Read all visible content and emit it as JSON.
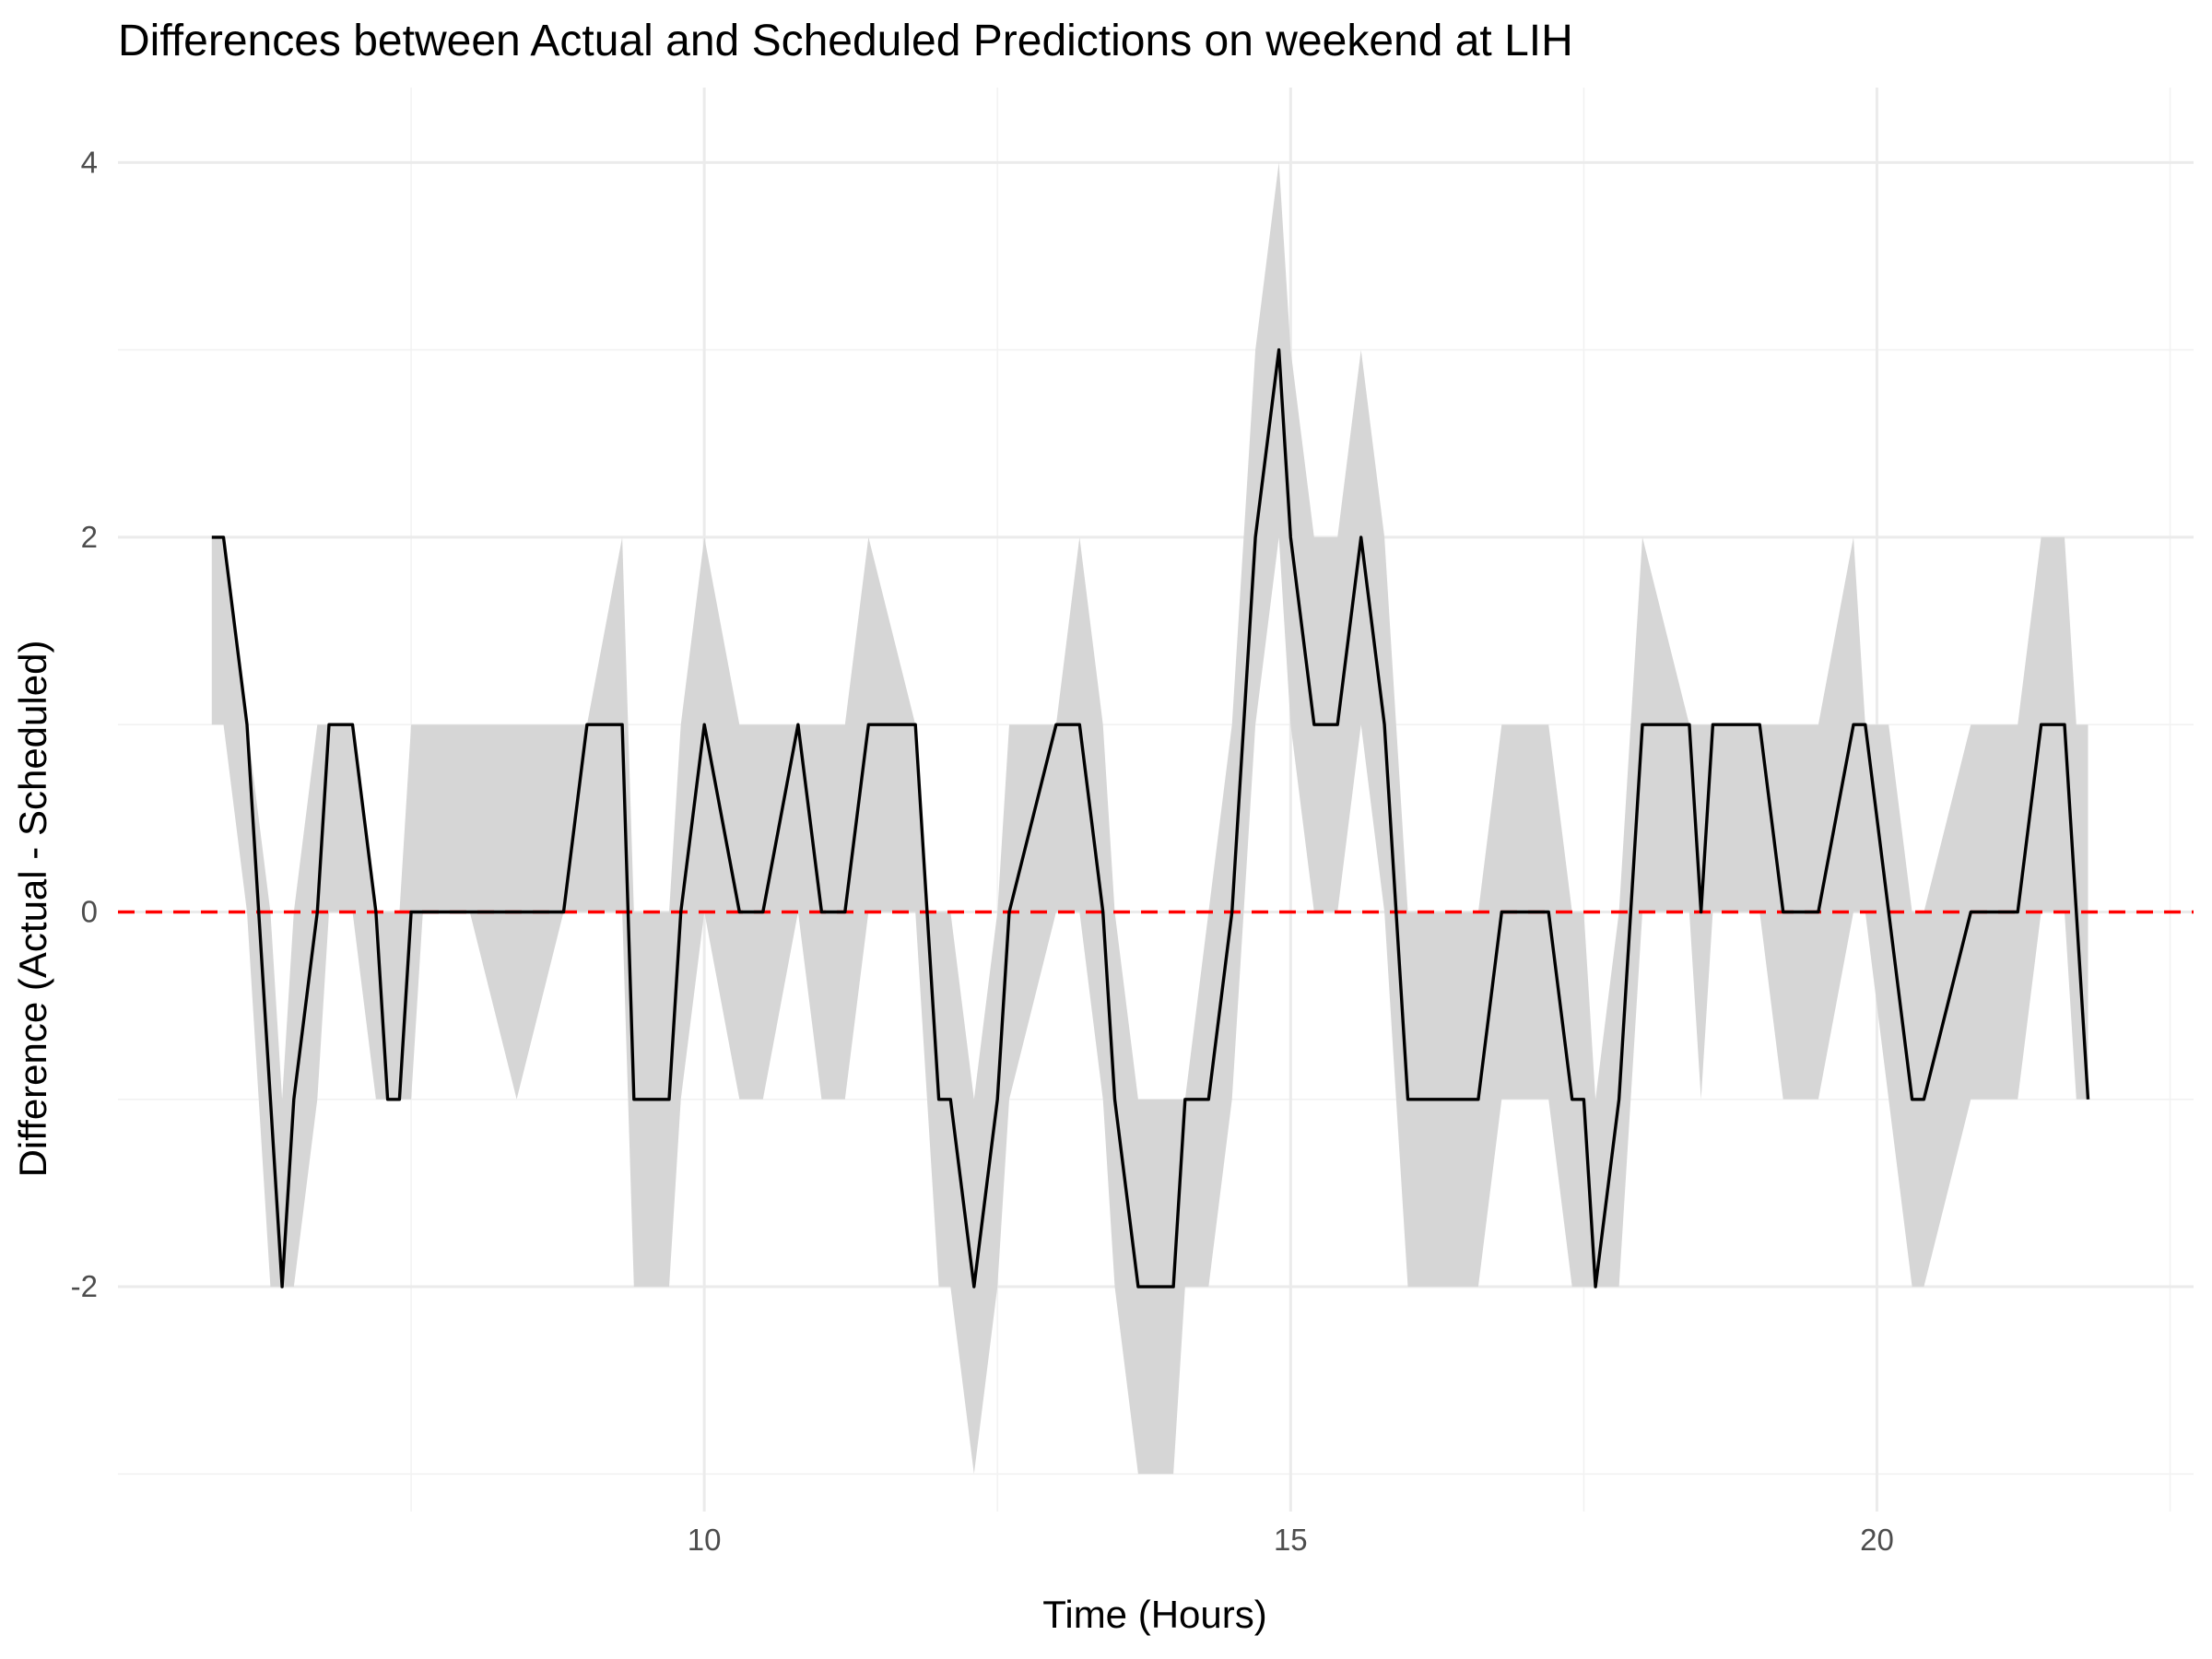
{
  "chart_data": {
    "type": "line",
    "title": "Differences between Actual and Scheduled Predictions on weekend at LIH",
    "xlabel": "Time (Hours)",
    "ylabel": "Difference (Actual - Scheduled)",
    "xlim": [
      5.0,
      22.7
    ],
    "ylim": [
      -3.2,
      4.4
    ],
    "x_ticks": [
      10,
      15,
      20
    ],
    "x_tick_labels": [
      "10",
      "15",
      "20"
    ],
    "x_minor_ticks": [
      7.5,
      12.5,
      17.5,
      22.5
    ],
    "y_ticks": [
      -2,
      0,
      2,
      4
    ],
    "y_tick_labels": [
      "-2",
      "0",
      "2",
      "4"
    ],
    "y_minor_ticks": [
      -3,
      -1,
      1,
      3
    ],
    "grid": true,
    "legend": "none",
    "colors": {
      "line": "#000000",
      "ribbon": "#d6d6d6",
      "reference": "#ff0000",
      "grid": "#ebebeb"
    },
    "reference_line": {
      "y": 0,
      "style": "dashed"
    },
    "series": [
      {
        "x": [
          5.8,
          5.9,
          6.1,
          6.3,
          6.4,
          6.5,
          6.7,
          6.8,
          7.0,
          7.2,
          7.3,
          7.4,
          7.5,
          7.6,
          8.0,
          8.4,
          8.8,
          9.0,
          9.3,
          9.4,
          9.7,
          9.8,
          10.0,
          10.3,
          10.5,
          10.8,
          11.0,
          11.2,
          11.4,
          11.8,
          11.9,
          12.0,
          12.1,
          12.3,
          12.5,
          12.6,
          13.0,
          13.2,
          13.4,
          13.5,
          13.7,
          14.0,
          14.1,
          14.3,
          14.5,
          14.7,
          14.9,
          15.0,
          15.2,
          15.4,
          15.6,
          15.8,
          15.9,
          16.0,
          16.2,
          16.6,
          16.8,
          17.1,
          17.2,
          17.4,
          17.5,
          17.6,
          17.8,
          18.0,
          18.4,
          18.5,
          18.6,
          19.0,
          19.2,
          19.5,
          19.8,
          19.9,
          20.1,
          20.3,
          20.4,
          20.8,
          20.9,
          21.2,
          21.4,
          21.6,
          21.7,
          21.8
        ],
        "values": [
          2,
          2,
          1,
          -1,
          -2,
          -1,
          0,
          1,
          1,
          0,
          -1,
          -1,
          0,
          0,
          0,
          0,
          0,
          1,
          1,
          -1,
          -1,
          0,
          1,
          0,
          0,
          1,
          0,
          0,
          1,
          1,
          0,
          -1,
          -1,
          -2,
          -1,
          0,
          1,
          1,
          0,
          -1,
          -2,
          -2,
          -1,
          -1,
          0,
          2,
          3,
          2,
          1,
          1,
          2,
          1,
          0,
          -1,
          -1,
          -1,
          0,
          0,
          0,
          -1,
          -1,
          -2,
          -1,
          1,
          1,
          0,
          1,
          1,
          0,
          0,
          1,
          1,
          0,
          -1,
          -1,
          0,
          0,
          0,
          1,
          1,
          0,
          -1
        ],
        "lower": [
          1,
          1,
          0,
          -2,
          -2,
          -2,
          -1,
          0,
          0,
          -1,
          -1,
          -1,
          -1,
          0,
          0,
          -1,
          0,
          0,
          0,
          -2,
          -2,
          -1,
          0,
          -1,
          -1,
          0,
          -1,
          -1,
          0,
          0,
          -1,
          -2,
          -2,
          -3,
          -2,
          -1,
          0,
          0,
          -1,
          -2,
          -3,
          -3,
          -2,
          -2,
          -1,
          1,
          2,
          1,
          0,
          0,
          1,
          0,
          -1,
          -2,
          -2,
          -2,
          -1,
          -1,
          -1,
          -2,
          -2,
          -2,
          -2,
          0,
          0,
          -1,
          0,
          0,
          -1,
          -1,
          0,
          0,
          -1,
          -2,
          -2,
          -1,
          -1,
          -1,
          0,
          0,
          -1,
          -1
        ],
        "upper": [
          2,
          2,
          1,
          0,
          -1,
          0,
          1,
          1,
          1,
          0,
          0,
          0,
          1,
          1,
          1,
          1,
          1,
          1,
          2,
          0,
          0,
          1,
          2,
          1,
          1,
          1,
          1,
          1,
          2,
          1,
          0,
          0,
          0,
          -1,
          0,
          1,
          1,
          2,
          1,
          0,
          -1,
          -1,
          -1,
          0,
          1,
          3,
          4,
          3,
          2,
          2,
          3,
          2,
          1,
          0,
          0,
          0,
          1,
          1,
          1,
          0,
          0,
          -1,
          0,
          2,
          1,
          1,
          1,
          1,
          1,
          1,
          2,
          1,
          1,
          0,
          0,
          1,
          1,
          1,
          2,
          2,
          1,
          1
        ]
      }
    ]
  }
}
